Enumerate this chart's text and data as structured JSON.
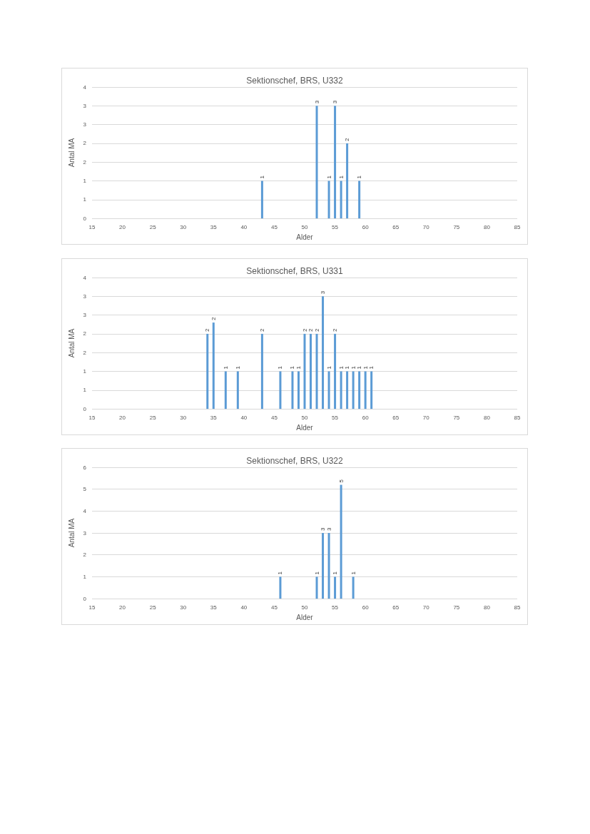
{
  "chart_data": [
    {
      "type": "bar",
      "title": "Sektionschef, BRS, U332",
      "xlabel": "Alder",
      "ylabel": "Antal MA",
      "x": [
        43,
        52,
        54,
        55,
        56,
        57,
        59
      ],
      "values": [
        1,
        3,
        1,
        3,
        1,
        2,
        1
      ],
      "value_labels": [
        "1",
        "3",
        "1",
        "3",
        "1",
        "2",
        "1"
      ],
      "color": "#5b9bd5",
      "xlim": [
        15,
        85
      ],
      "xticks": [
        15,
        20,
        25,
        30,
        35,
        40,
        45,
        50,
        55,
        60,
        65,
        70,
        75,
        80,
        85
      ],
      "ylim": [
        0,
        3.5
      ],
      "yticks": [
        0,
        {
          "value": 0.5,
          "label": "1"
        },
        1,
        {
          "value": 1.5,
          "label": "2"
        },
        2,
        {
          "value": 2.5,
          "label": "3"
        },
        3,
        {
          "value": 3.5,
          "label": "4"
        }
      ],
      "grid": "y"
    },
    {
      "type": "bar",
      "title": "Sektionschef, BRS, U331",
      "xlabel": "Alder",
      "ylabel": "Antal MA",
      "x": [
        34,
        35,
        37,
        39,
        43,
        46,
        48,
        49,
        50,
        51,
        52,
        53,
        54,
        55,
        56,
        57,
        58,
        59,
        60,
        61
      ],
      "values": [
        2,
        2.3,
        1,
        1,
        2,
        1,
        1,
        1,
        2,
        2,
        2,
        3,
        1,
        2,
        1,
        1,
        1,
        1,
        1,
        1
      ],
      "value_labels": [
        "2",
        "2",
        "1",
        "1",
        "2",
        "1",
        "1",
        "1",
        "2",
        "2",
        "2",
        "3",
        "1",
        "2",
        "1",
        "1",
        "1",
        "1",
        "1",
        "1"
      ],
      "color": "#5b9bd5",
      "xlim": [
        15,
        85
      ],
      "xticks": [
        15,
        20,
        25,
        30,
        35,
        40,
        45,
        50,
        55,
        60,
        65,
        70,
        75,
        80,
        85
      ],
      "ylim": [
        0,
        3.5
      ],
      "yticks": [
        0,
        {
          "value": 0.5,
          "label": "1"
        },
        1,
        {
          "value": 1.5,
          "label": "2"
        },
        2,
        {
          "value": 2.5,
          "label": "3"
        },
        3,
        {
          "value": 3.5,
          "label": "4"
        }
      ],
      "grid": "y"
    },
    {
      "type": "bar",
      "title": "Sektionschef, BRS, U322",
      "xlabel": "Alder",
      "ylabel": "Antal MA",
      "x": [
        46,
        52,
        53,
        54,
        55,
        56,
        58
      ],
      "values": [
        1,
        1,
        3,
        3,
        1,
        5.2,
        1
      ],
      "value_labels": [
        "1",
        "1",
        "3",
        "3",
        "1",
        "5",
        "1"
      ],
      "color": "#5b9bd5",
      "xlim": [
        15,
        85
      ],
      "xticks": [
        15,
        20,
        25,
        30,
        35,
        40,
        45,
        50,
        55,
        60,
        65,
        70,
        75,
        80,
        85
      ],
      "ylim": [
        0,
        6
      ],
      "yticks": [
        0,
        1,
        2,
        3,
        4,
        5,
        6
      ],
      "grid": "y"
    }
  ]
}
